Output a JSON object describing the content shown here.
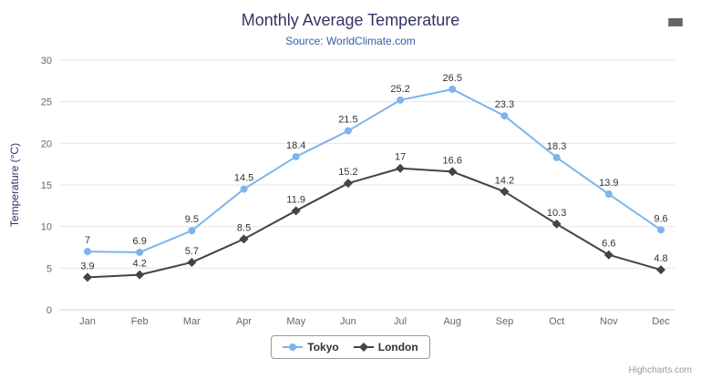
{
  "chart_data": {
    "type": "line",
    "title": "Monthly Average Temperature",
    "subtitle": "Source: WorldClimate.com",
    "categories": [
      "Jan",
      "Feb",
      "Mar",
      "Apr",
      "May",
      "Jun",
      "Jul",
      "Aug",
      "Sep",
      "Oct",
      "Nov",
      "Dec"
    ],
    "series": [
      {
        "name": "Tokyo",
        "color": "#7cb5ec",
        "marker": "circle",
        "values": [
          7,
          6.9,
          9.5,
          14.5,
          18.4,
          21.5,
          25.2,
          26.5,
          23.3,
          18.3,
          13.9,
          9.6
        ]
      },
      {
        "name": "London",
        "color": "#434348",
        "marker": "diamond",
        "values": [
          3.9,
          4.2,
          5.7,
          8.5,
          11.9,
          15.2,
          17,
          16.6,
          14.2,
          10.3,
          6.6,
          4.8
        ]
      }
    ],
    "xlabel": "",
    "ylabel": "Temperature (°C)",
    "ylim": [
      0,
      30
    ],
    "ytick_interval": 5,
    "grid": true,
    "legend_position": "bottom-center",
    "credits": "Highcharts.com",
    "colors": {
      "title": "#333366",
      "subtitle": "#335cad",
      "grid": "#e6e6e6",
      "axis_line": "#ccd6eb",
      "axis_label": "#666666",
      "data_label": "#333333",
      "legend_border": "#999999",
      "legend_text": "#333333",
      "menu_icon": "#666666"
    },
    "icons": {
      "export_menu": "hamburger-menu-icon"
    }
  }
}
